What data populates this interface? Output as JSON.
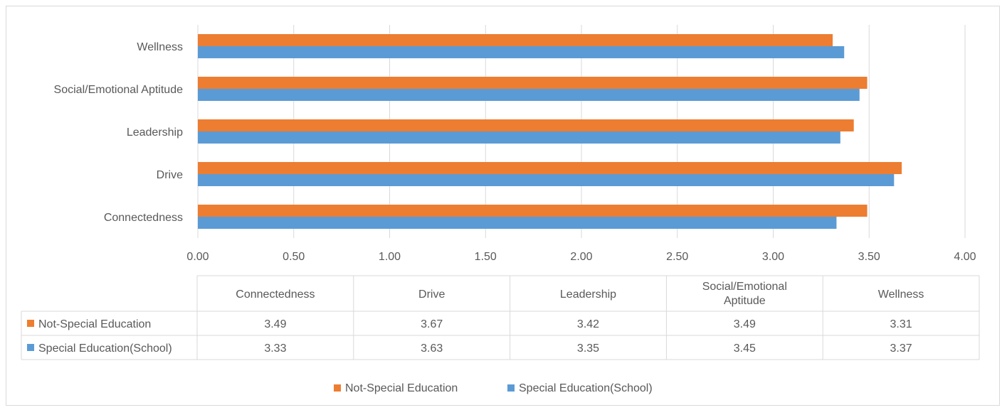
{
  "chart_data": {
    "type": "bar",
    "orientation": "horizontal",
    "categories": [
      "Connectedness",
      "Drive",
      "Leadership",
      "Social/Emotional Aptitude",
      "Wellness"
    ],
    "series": [
      {
        "name": "Not-Special Education",
        "color": "#ED7D31",
        "values": [
          3.49,
          3.67,
          3.42,
          3.49,
          3.31
        ]
      },
      {
        "name": "Special Education(School)",
        "color": "#5B9BD5",
        "values": [
          3.33,
          3.63,
          3.35,
          3.45,
          3.37
        ]
      }
    ],
    "x_ticks": [
      "0.00",
      "0.50",
      "1.00",
      "1.50",
      "2.00",
      "2.50",
      "3.00",
      "3.50",
      "4.00"
    ],
    "xlim": [
      0,
      4
    ],
    "grid": true,
    "data_table": {
      "header": [
        "Connectedness",
        "Drive",
        "Leadership",
        "Social/Emotional Aptitude",
        "Wellness"
      ],
      "rows": [
        {
          "series": "Not-Special Education",
          "values": [
            "3.49",
            "3.67",
            "3.42",
            "3.49",
            "3.31"
          ]
        },
        {
          "series": "Special Education(School)",
          "values": [
            "3.33",
            "3.63",
            "3.35",
            "3.45",
            "3.37"
          ]
        }
      ]
    },
    "legend": {
      "placement": "bottom",
      "entries": [
        "Not-Special Education",
        "Special Education(School)"
      ]
    }
  }
}
